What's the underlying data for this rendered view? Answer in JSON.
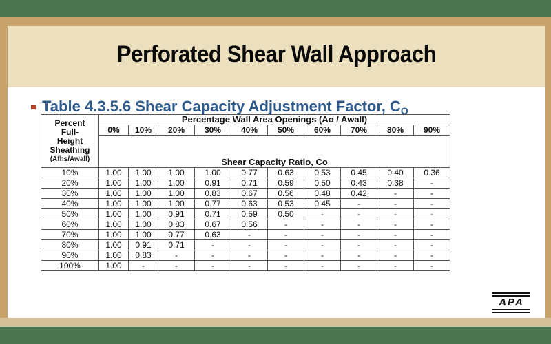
{
  "title": "Perforated Shear Wall Approach",
  "subtitle": {
    "text": "Table 4.3.5.6 Shear Capacity Adjustment Factor, C",
    "subscript": "O"
  },
  "table": {
    "row_header": [
      "Percent",
      "Full-",
      "Height",
      "Sheathing",
      "(Afhs/Awall)"
    ],
    "group_header": "Percentage Wall Area Openings (Ao / Awall)",
    "value_header": "Shear Capacity Ratio, Co",
    "columns": [
      "0%",
      "10%",
      "20%",
      "30%",
      "40%",
      "50%",
      "60%",
      "70%",
      "80%",
      "90%"
    ],
    "rows": [
      {
        "label": "10%",
        "values": [
          "1.00",
          "1.00",
          "1.00",
          "1.00",
          "0.77",
          "0.63",
          "0.53",
          "0.45",
          "0.40",
          "0.36"
        ]
      },
      {
        "label": "20%",
        "values": [
          "1.00",
          "1.00",
          "1.00",
          "0.91",
          "0.71",
          "0.59",
          "0.50",
          "0.43",
          "0.38",
          "-"
        ]
      },
      {
        "label": "30%",
        "values": [
          "1.00",
          "1.00",
          "1.00",
          "0.83",
          "0.67",
          "0.56",
          "0.48",
          "0.42",
          "-",
          "-"
        ]
      },
      {
        "label": "40%",
        "values": [
          "1.00",
          "1.00",
          "1.00",
          "0.77",
          "0.63",
          "0.53",
          "0.45",
          "-",
          "-",
          "-"
        ]
      },
      {
        "label": "50%",
        "values": [
          "1.00",
          "1.00",
          "0.91",
          "0.71",
          "0.59",
          "0.50",
          "-",
          "-",
          "-",
          "-"
        ]
      },
      {
        "label": "60%",
        "values": [
          "1.00",
          "1.00",
          "0.83",
          "0.67",
          "0.56",
          "-",
          "-",
          "-",
          "-",
          "-"
        ]
      },
      {
        "label": "70%",
        "values": [
          "1.00",
          "1.00",
          "0.77",
          "0.63",
          "-",
          "-",
          "-",
          "-",
          "-",
          "-"
        ]
      },
      {
        "label": "80%",
        "values": [
          "1.00",
          "0.91",
          "0.71",
          "-",
          "-",
          "-",
          "-",
          "-",
          "-",
          "-"
        ]
      },
      {
        "label": "90%",
        "values": [
          "1.00",
          "0.83",
          "-",
          "-",
          "-",
          "-",
          "-",
          "-",
          "-",
          "-"
        ]
      },
      {
        "label": "100%",
        "values": [
          "1.00",
          "-",
          "-",
          "-",
          "-",
          "-",
          "-",
          "-",
          "-",
          "-"
        ]
      }
    ]
  },
  "logo": "APA",
  "colors": {
    "frame_green": "#4a7350",
    "frame_tan": "#c8a46c",
    "title_bg": "#ebdfbd",
    "subtitle_blue": "#2f5a8c",
    "bullet_red": "#b0402a"
  }
}
